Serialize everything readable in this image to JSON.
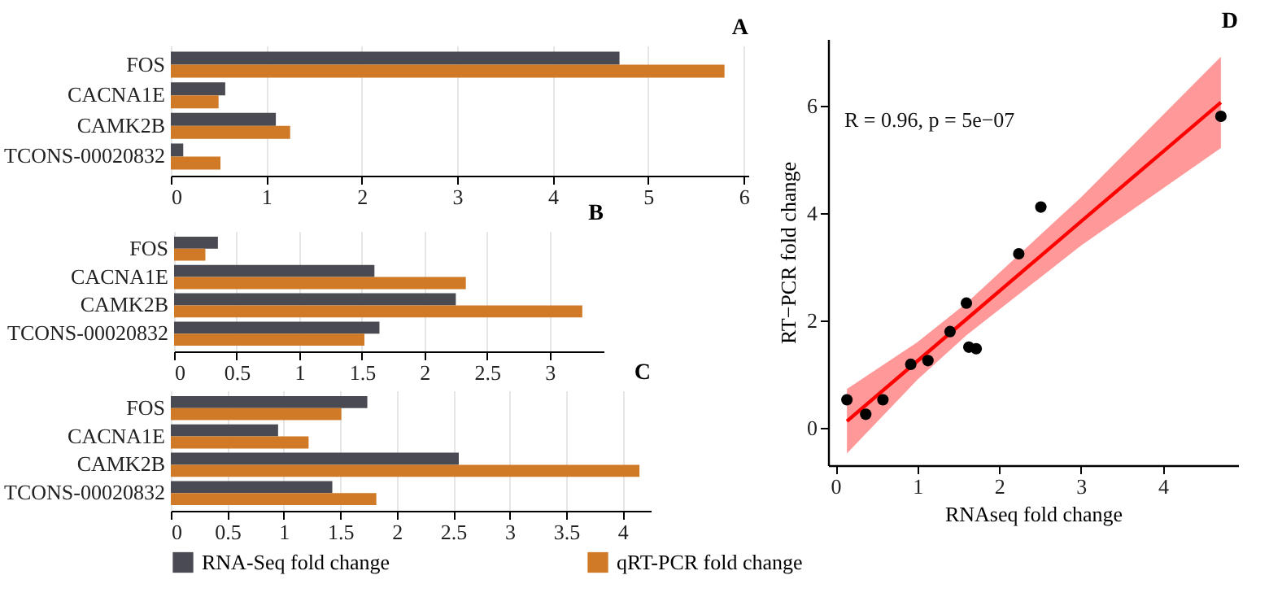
{
  "chart_data": [
    {
      "type": "bar",
      "orientation": "horizontal",
      "title": "A",
      "categories": [
        "FOS",
        "CACNA1E",
        "CAMK2B",
        "TCONS-00020832"
      ],
      "series": [
        {
          "color": "#4a4a52",
          "values": [
            4.7,
            0.57,
            1.1,
            0.13
          ]
        },
        {
          "color": "#d07a28",
          "values": [
            5.8,
            0.5,
            1.25,
            0.52
          ]
        }
      ],
      "xlim": [
        0,
        6.05
      ],
      "xticks": [
        0,
        1,
        2,
        3,
        4,
        5,
        6
      ],
      "grid": "x",
      "legend": false
    },
    {
      "type": "bar",
      "orientation": "horizontal",
      "title": "B",
      "categories": [
        "FOS",
        "CACNA1E",
        "CAMK2B",
        "TCONS-00020832"
      ],
      "series": [
        {
          "color": "#4a4a52",
          "values": [
            0.35,
            1.6,
            2.25,
            1.64
          ]
        },
        {
          "color": "#d07a28",
          "values": [
            0.25,
            2.33,
            3.26,
            1.52
          ]
        }
      ],
      "xlim": [
        0,
        3.43
      ],
      "xticks": [
        0,
        0.5,
        1,
        1.5,
        2,
        2.5,
        3
      ],
      "grid": "x",
      "legend": false
    },
    {
      "type": "bar",
      "orientation": "horizontal",
      "title": "C",
      "categories": [
        "FOS",
        "CACNA1E",
        "CAMK2B",
        "TCONS-00020832"
      ],
      "series": [
        {
          "name": "RNA-Seq fold change",
          "color": "#4a4a52",
          "values": [
            1.74,
            0.95,
            2.55,
            1.43
          ]
        },
        {
          "name": "qRT-PCR fold change",
          "color": "#d07a28",
          "values": [
            1.51,
            1.22,
            4.15,
            1.82
          ]
        }
      ],
      "xlim": [
        0,
        4.25
      ],
      "xticks": [
        0,
        0.5,
        1,
        1.5,
        2,
        2.5,
        3,
        3.5,
        4
      ],
      "grid": "x",
      "legend": "bottom"
    },
    {
      "type": "scatter",
      "title": "D",
      "xlabel": "RNAseq fold change",
      "ylabel": "RT−PCR fold change",
      "annotations": [
        "R = 0.96, p = 5e−07"
      ],
      "series": [
        {
          "type": "line",
          "color": "#ff0000",
          "x": [
            0.14,
            1,
            1.6,
            3,
            4.71
          ],
          "values": [
            0.12,
            1.24,
            2.02,
            3.84,
            6.06
          ],
          "lower": [
            -0.48,
            0.89,
            1.72,
            3.39,
            5.21
          ],
          "upper": [
            0.72,
            1.59,
            2.32,
            4.29,
            6.91
          ]
        },
        {
          "type": "scatter",
          "color": "#000000",
          "marker": "circle",
          "x": [
            0.14,
            0.37,
            0.58,
            0.92,
            1.13,
            1.4,
            1.6,
            1.63,
            1.72,
            2.24,
            2.51,
            4.71
          ],
          "values": [
            0.52,
            0.25,
            0.52,
            1.18,
            1.25,
            1.79,
            2.32,
            1.5,
            1.47,
            3.24,
            4.11,
            5.8
          ]
        }
      ],
      "xlim": [
        -0.09,
        4.92
      ],
      "ylim": [
        -0.7,
        7.24
      ],
      "xticks": [
        0,
        1,
        2,
        3,
        4
      ],
      "yticks": [
        0,
        2,
        4,
        6
      ],
      "grid": false
    }
  ]
}
